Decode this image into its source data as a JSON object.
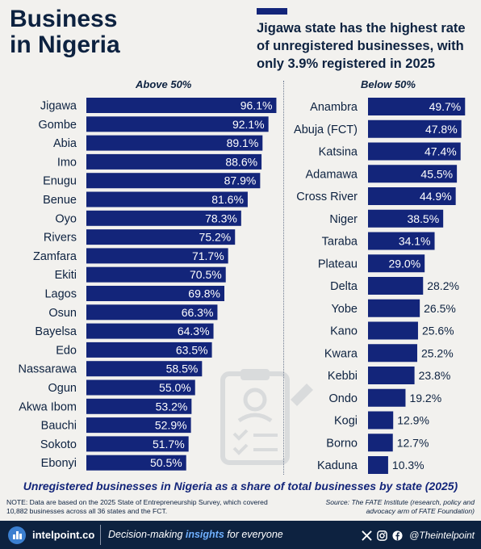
{
  "header": {
    "title_line1": "Business",
    "title_line2": "in Nigeria",
    "headline": "Jigawa state has the highest rate of unregistered businesses, with only 3.9% registered in 2025"
  },
  "chart_data": [
    {
      "type": "bar",
      "orientation": "horizontal",
      "title": "Above 50%",
      "value_suffix": "%",
      "xlim": [
        0,
        100
      ],
      "categories": [
        "Jigawa",
        "Gombe",
        "Abia",
        "Imo",
        "Enugu",
        "Benue",
        "Oyo",
        "Rivers",
        "Zamfara",
        "Ekiti",
        "Lagos",
        "Osun",
        "Bayelsa",
        "Edo",
        "Nassarawa",
        "Ogun",
        "Akwa Ibom",
        "Bauchi",
        "Sokoto",
        "Ebonyi"
      ],
      "values": [
        96.1,
        92.1,
        89.1,
        88.6,
        87.9,
        81.6,
        78.3,
        75.2,
        71.7,
        70.5,
        69.8,
        66.3,
        64.3,
        63.5,
        58.5,
        55.0,
        53.2,
        52.9,
        51.7,
        50.5
      ],
      "labels": [
        "96.1%",
        "92.1%",
        "89.1%",
        "88.6%",
        "87.9%",
        "81.6%",
        "78.3%",
        "75.2%",
        "71.7%",
        "70.5%",
        "69.8%",
        "66.3%",
        "64.3%",
        "63.5%",
        "58.5%",
        "55.0%",
        "53.2%",
        "52.9%",
        "51.7%",
        "50.5%"
      ]
    },
    {
      "type": "bar",
      "orientation": "horizontal",
      "title": "Below 50%",
      "value_suffix": "%",
      "xlim": [
        0,
        100
      ],
      "categories": [
        "Anambra",
        "Abuja (FCT)",
        "Katsina",
        "Adamawa",
        "Cross River",
        "Niger",
        "Taraba",
        "Plateau",
        "Delta",
        "Yobe",
        "Kano",
        "Kwara",
        "Kebbi",
        "Ondo",
        "Kogi",
        "Borno",
        "Kaduna"
      ],
      "values": [
        49.7,
        47.8,
        47.4,
        45.5,
        44.9,
        38.5,
        34.1,
        29.0,
        28.2,
        26.5,
        25.6,
        25.2,
        23.8,
        19.2,
        12.9,
        12.7,
        10.3
      ],
      "labels": [
        "49.7%",
        "47.8%",
        "47.4%",
        "45.5%",
        "44.9%",
        "38.5%",
        "34.1%",
        "29.0%",
        "28.2%",
        "26.5%",
        "25.6%",
        "25.2%",
        "23.8%",
        "19.2%",
        "12.9%",
        "12.7%",
        "10.3%"
      ]
    }
  ],
  "colors": {
    "bar": "#13257a",
    "text": "#0d2240",
    "background": "#f2f1ee",
    "footer": "#0d2240"
  },
  "subtitle": "Unregistered businesses in Nigeria as a share of total businesses by state (2025)",
  "note": "NOTE: Data are based on the 2025 State of Entrepreneurship Survey, which covered 10,882 businesses across all 36 states and the FCT.",
  "source": "Source: The FATE Institute (research, policy and advocacy arm of FATE Foundation)",
  "footer": {
    "brand": "intelpoint.co",
    "tagline_pre": "Decision-making ",
    "tagline_em": "insights",
    "tagline_post": " for everyone",
    "handle": "@Theintelpoint",
    "icons": [
      "x-icon",
      "instagram-icon",
      "facebook-icon"
    ]
  }
}
